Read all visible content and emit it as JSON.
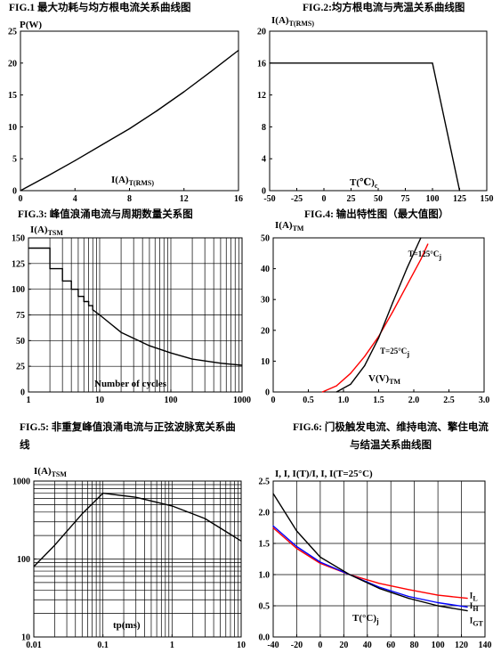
{
  "charts": [
    {
      "caption": "FIG.1  最大功耗与均方根电流关系曲线图",
      "type": "line",
      "xscale": "linear",
      "yscale": "linear",
      "xlim": [
        0,
        16
      ],
      "ylim": [
        0,
        25
      ],
      "xticks": [
        0,
        4,
        8,
        12,
        16
      ],
      "yticks": [
        0,
        5,
        10,
        15,
        20,
        25
      ],
      "xtick_labels": [
        "0",
        "4",
        "8",
        "12",
        "16"
      ],
      "ytick_labels": [
        "0",
        "5",
        "10",
        "15",
        "20",
        "25"
      ],
      "grid": false,
      "ylabel": "P(W)",
      "xlabel": "I(A)",
      "xlabel_sub": "T(RMS)",
      "series": [
        {
          "color": "#000000",
          "x": [
            0,
            2,
            4,
            6,
            8,
            10,
            12,
            14,
            16
          ],
          "y": [
            0,
            2.3,
            4.7,
            7.2,
            9.7,
            12.5,
            15.5,
            18.7,
            22.0
          ]
        }
      ]
    },
    {
      "caption": "FIG.2:均方根电流与壳温关系曲线图",
      "type": "line",
      "xscale": "linear",
      "yscale": "linear",
      "xlim": [
        -50,
        150
      ],
      "ylim": [
        0,
        20
      ],
      "xticks": [
        -50,
        -25,
        0,
        25,
        50,
        75,
        100,
        125,
        150
      ],
      "yticks": [
        0,
        4,
        8,
        12,
        16,
        20
      ],
      "xtick_labels": [
        "-50",
        "-25",
        "0",
        "25",
        "50",
        "75",
        "100",
        "125",
        "150"
      ],
      "ytick_labels": [
        "0",
        "4",
        "8",
        "12",
        "16",
        "20"
      ],
      "grid": false,
      "ylabel": "I(A)",
      "ylabel_sub": "T(RMS)",
      "xlabel": "T(℃)",
      "xlabel_sub": "c",
      "series": [
        {
          "color": "#000000",
          "x": [
            -50,
            100,
            125
          ],
          "y": [
            16,
            16,
            0
          ]
        }
      ]
    },
    {
      "caption": "FIG.3:  峰值浪涌电流与周期数量关系图",
      "type": "line",
      "xscale": "log",
      "yscale": "linear",
      "xlim": [
        1,
        1000
      ],
      "ylim": [
        0,
        150
      ],
      "xticks": [
        1,
        10,
        100,
        1000
      ],
      "yticks": [
        0,
        25,
        50,
        75,
        100,
        125,
        150
      ],
      "xtick_labels": [
        "1",
        "10",
        "100",
        "1000"
      ],
      "ytick_labels": [
        "0",
        "25",
        "50",
        "75",
        "100",
        "125",
        "150"
      ],
      "grid": true,
      "ylabel": "I(A)",
      "ylabel_sub": "TSM",
      "xlabel": "Number of cycles",
      "series": [
        {
          "color": "#000000",
          "x": [
            1,
            2,
            2,
            3,
            3,
            4,
            4,
            5,
            5,
            6,
            6,
            7,
            7,
            8,
            8,
            10,
            20,
            50,
            100,
            200,
            500,
            1000
          ],
          "y": [
            140,
            140,
            120,
            120,
            108,
            108,
            100,
            100,
            93,
            93,
            88,
            88,
            84,
            84,
            80,
            75,
            58,
            45,
            38,
            32,
            28,
            26
          ]
        }
      ]
    },
    {
      "caption": "FIG.4:  输出特性图（最大值图）",
      "type": "line",
      "xscale": "linear",
      "yscale": "linear",
      "xlim": [
        0,
        3.0
      ],
      "ylim": [
        0,
        50
      ],
      "xticks": [
        0,
        0.5,
        1.0,
        1.5,
        2.0,
        2.5,
        3.0
      ],
      "yticks": [
        0,
        10,
        20,
        30,
        40,
        50
      ],
      "xtick_labels": [
        "0",
        "0.5",
        "1.0",
        "1.5",
        "2.0",
        "2.5",
        "3.0"
      ],
      "ytick_labels": [
        "0",
        "10",
        "20",
        "30",
        "40",
        "50"
      ],
      "grid": false,
      "ylabel": "I(A)",
      "ylabel_sub": "TM",
      "xlabel": "V(V)",
      "xlabel_sub": "TM",
      "annotations": [
        {
          "text": "T=125°C",
          "sub": "j",
          "x": 1.92,
          "y": 44,
          "color": "#000000"
        },
        {
          "text": "T=25°C",
          "sub": "j",
          "x": 1.52,
          "y": 12.5,
          "color": "#000000"
        }
      ],
      "series": [
        {
          "color": "#ff0000",
          "x": [
            0.7,
            0.9,
            1.1,
            1.3,
            1.5,
            1.7,
            1.9,
            2.1,
            2.2
          ],
          "y": [
            0,
            2,
            6,
            11.5,
            18,
            26,
            34.5,
            43,
            48
          ]
        },
        {
          "color": "#000000",
          "x": [
            0.9,
            1.1,
            1.3,
            1.5,
            1.7,
            1.9,
            2.1
          ],
          "y": [
            0,
            2.5,
            8.5,
            17.5,
            29,
            40,
            50
          ]
        }
      ]
    },
    {
      "caption": "FIG.5:  非重复峰值浪涌电流与正弦波脉宽关系曲线",
      "type": "line",
      "xscale": "log",
      "yscale": "log",
      "xlim": [
        0.01,
        10
      ],
      "ylim": [
        10,
        1000
      ],
      "xticks": [
        0.01,
        0.1,
        1,
        10
      ],
      "yticks": [
        10,
        100,
        1000
      ],
      "xtick_labels": [
        "0.01",
        "0.1",
        "1",
        "10"
      ],
      "ytick_labels": [
        "10",
        "100",
        "1000"
      ],
      "grid": true,
      "ylabel": "I(A)",
      "ylabel_sub": "TSM",
      "xlabel": "tp(ms)",
      "series": [
        {
          "color": "#000000",
          "x": [
            0.01,
            0.02,
            0.05,
            0.1,
            0.3,
            1,
            3,
            10
          ],
          "y": [
            80,
            150,
            380,
            700,
            620,
            480,
            330,
            170
          ]
        }
      ]
    },
    {
      "caption": "FIG.6:  门极触发电流、维持电流、擎住电流与结温关系曲线图",
      "type": "line",
      "xscale": "linear",
      "yscale": "linear",
      "xlim": [
        -40,
        140
      ],
      "ylim": [
        0,
        2.5
      ],
      "xticks": [
        -40,
        -20,
        0,
        20,
        40,
        60,
        80,
        100,
        120,
        140
      ],
      "yticks": [
        0,
        0.5,
        1.0,
        1.5,
        2.0,
        2.5
      ],
      "xtick_labels": [
        "-40",
        "-20",
        "0",
        "20",
        "40",
        "60",
        "80",
        "100",
        "120",
        "140"
      ],
      "ytick_labels": [
        "0.0",
        "0.5",
        "1.0",
        "1.5",
        "2.0",
        "2.5"
      ],
      "grid": true,
      "ylabel": "I, I, I(T)/I, I, I(T=25°C)",
      "xlabel": "T(°C)",
      "xlabel_sub": "j",
      "annotations": [
        {
          "text": "I",
          "sub": "L",
          "x": 127,
          "y": 0.62,
          "color": "#000000"
        },
        {
          "text": "I",
          "sub": "H",
          "x": 127,
          "y": 0.46,
          "color": "#000000"
        },
        {
          "text": "I",
          "sub": "GT",
          "x": 127,
          "y": 0.22,
          "color": "#000000"
        }
      ],
      "series": [
        {
          "name": "I_L",
          "color": "#ff0000",
          "x": [
            -40,
            -20,
            0,
            25,
            50,
            75,
            100,
            125
          ],
          "y": [
            1.75,
            1.42,
            1.18,
            1.0,
            0.86,
            0.76,
            0.67,
            0.62
          ]
        },
        {
          "name": "I_H",
          "color": "#0000ff",
          "x": [
            -40,
            -20,
            0,
            25,
            50,
            75,
            100,
            125
          ],
          "y": [
            1.78,
            1.45,
            1.2,
            1.0,
            0.8,
            0.65,
            0.55,
            0.48
          ]
        },
        {
          "name": "I_GT",
          "color": "#000000",
          "x": [
            -40,
            -20,
            0,
            25,
            50,
            75,
            100,
            125
          ],
          "y": [
            2.3,
            1.7,
            1.28,
            1.0,
            0.78,
            0.62,
            0.5,
            0.42
          ]
        }
      ]
    }
  ]
}
